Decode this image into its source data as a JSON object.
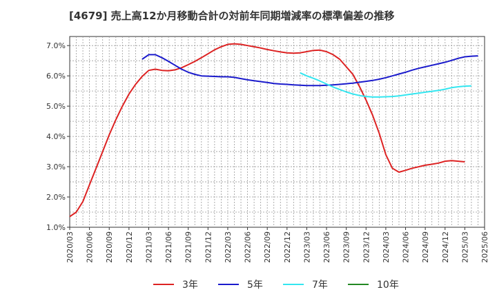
{
  "chart_data": {
    "type": "line",
    "title": "[4679]  売上高12か月移動合計の対前年同期増減率の標準偏差の推移",
    "xlabel": "",
    "ylabel": "",
    "ylim": [
      1.0,
      7.3
    ],
    "grid": true,
    "legend_placement": "bottom",
    "x_ticks": [
      "2020/03",
      "2020/06",
      "2020/09",
      "2020/12",
      "2021/03",
      "2021/06",
      "2021/09",
      "2021/12",
      "2022/03",
      "2022/06",
      "2022/09",
      "2022/12",
      "2023/03",
      "2023/06",
      "2023/09",
      "2023/12",
      "2024/03",
      "2024/06",
      "2024/09",
      "2024/12",
      "2025/03",
      "2025/06"
    ],
    "y_ticks": [
      {
        "value": 1.0,
        "label": "1.0%"
      },
      {
        "value": 2.0,
        "label": "2.0%"
      },
      {
        "value": 3.0,
        "label": "3.0%"
      },
      {
        "value": 4.0,
        "label": "4.0%"
      },
      {
        "value": 5.0,
        "label": "5.0%"
      },
      {
        "value": 6.0,
        "label": "6.0%"
      },
      {
        "value": 7.0,
        "label": "7.0%"
      }
    ],
    "series": [
      {
        "name": "3年",
        "color": "#dd2222",
        "start": "2020/03",
        "values": [
          1.35,
          1.5,
          1.85,
          2.4,
          2.95,
          3.5,
          4.05,
          4.55,
          5.0,
          5.4,
          5.72,
          5.98,
          6.18,
          6.22,
          6.18,
          6.17,
          6.2,
          6.27,
          6.37,
          6.48,
          6.6,
          6.73,
          6.86,
          6.96,
          7.04,
          7.06,
          7.04,
          7.0,
          6.96,
          6.92,
          6.87,
          6.83,
          6.79,
          6.76,
          6.75,
          6.76,
          6.8,
          6.84,
          6.85,
          6.8,
          6.7,
          6.55,
          6.3,
          6.05,
          5.65,
          5.2,
          4.7,
          4.1,
          3.4,
          2.95,
          2.82,
          2.88,
          2.95,
          3.0,
          3.05,
          3.08,
          3.12,
          3.18,
          3.2,
          3.18,
          3.16
        ]
      },
      {
        "name": "5年",
        "color": "#1a1acc",
        "start": "2021/02",
        "values": [
          6.55,
          6.7,
          6.7,
          6.6,
          6.48,
          6.35,
          6.22,
          6.12,
          6.05,
          6.0,
          5.99,
          5.98,
          5.97,
          5.97,
          5.95,
          5.91,
          5.87,
          5.84,
          5.81,
          5.78,
          5.75,
          5.73,
          5.72,
          5.7,
          5.69,
          5.68,
          5.68,
          5.68,
          5.69,
          5.7,
          5.72,
          5.74,
          5.76,
          5.79,
          5.82,
          5.85,
          5.89,
          5.94,
          6.0,
          6.06,
          6.12,
          6.19,
          6.25,
          6.3,
          6.35,
          6.4,
          6.45,
          6.51,
          6.58,
          6.63,
          6.65,
          6.66
        ]
      },
      {
        "name": "7年",
        "color": "#33e6f0",
        "start": "2023/02",
        "values": [
          6.1,
          6.0,
          5.92,
          5.83,
          5.73,
          5.63,
          5.55,
          5.47,
          5.4,
          5.35,
          5.32,
          5.3,
          5.3,
          5.31,
          5.32,
          5.34,
          5.37,
          5.4,
          5.43,
          5.46,
          5.49,
          5.52,
          5.56,
          5.61,
          5.64,
          5.66,
          5.67
        ]
      },
      {
        "name": "10年",
        "color": "#228822",
        "start": "2025/03",
        "values": []
      }
    ]
  }
}
